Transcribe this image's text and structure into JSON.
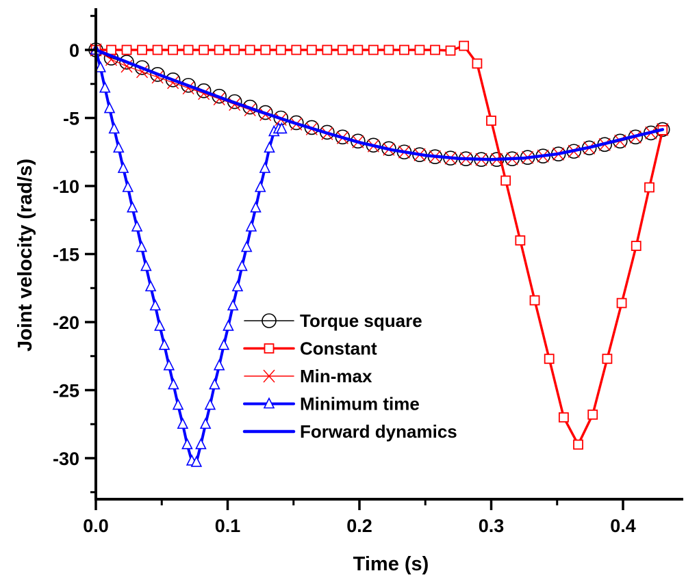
{
  "chart_data": {
    "type": "line",
    "title": "",
    "xlabel": "Time (s)",
    "ylabel": "Joint velocity (rad/s)",
    "xlim": [
      0,
      0.45
    ],
    "ylim": [
      -33,
      3
    ],
    "xticks": [
      0.0,
      0.1,
      0.2,
      0.3,
      0.4
    ],
    "xtick_labels": [
      "0.0",
      "0.1",
      "0.2",
      "0.3",
      "0.4"
    ],
    "yticks": [
      0,
      -5,
      -10,
      -15,
      -20,
      -25,
      -30
    ],
    "ytick_labels": [
      "0",
      "-5",
      "-10",
      "-15",
      "-20",
      "-25",
      "-30"
    ],
    "grid": false,
    "legend_position": "center",
    "series": [
      {
        "name": "Torque square",
        "color": "#000000",
        "marker": "circle",
        "x": [
          0.0,
          0.0117,
          0.0234,
          0.0351,
          0.0468,
          0.0585,
          0.0702,
          0.0819,
          0.0936,
          0.1053,
          0.117,
          0.1287,
          0.1404,
          0.1521,
          0.1638,
          0.1755,
          0.1872,
          0.1989,
          0.2106,
          0.2223,
          0.234,
          0.2457,
          0.2574,
          0.2691,
          0.2808,
          0.2925,
          0.3042,
          0.3159,
          0.3276,
          0.3393,
          0.351,
          0.3627,
          0.3744,
          0.3861,
          0.3978,
          0.4095,
          0.4212,
          0.43
        ],
        "values": [
          0.0,
          -0.6,
          -0.9,
          -1.3,
          -1.8,
          -2.2,
          -2.6,
          -3.0,
          -3.4,
          -3.8,
          -4.2,
          -4.6,
          -5.0,
          -5.35,
          -5.7,
          -6.05,
          -6.4,
          -6.7,
          -7.0,
          -7.25,
          -7.5,
          -7.7,
          -7.85,
          -7.95,
          -8.0,
          -8.05,
          -8.05,
          -8.0,
          -7.9,
          -7.8,
          -7.65,
          -7.45,
          -7.2,
          -6.95,
          -6.7,
          -6.4,
          -6.1,
          -5.85
        ]
      },
      {
        "name": "Constant",
        "color": "#ff0000",
        "marker": "square",
        "x": [
          0.0,
          0.0117,
          0.0234,
          0.0351,
          0.0468,
          0.0585,
          0.0702,
          0.0819,
          0.0936,
          0.1053,
          0.117,
          0.1287,
          0.1404,
          0.1521,
          0.1638,
          0.1755,
          0.1872,
          0.1989,
          0.2106,
          0.2223,
          0.234,
          0.2457,
          0.2574,
          0.2691,
          0.2793,
          0.2893,
          0.3,
          0.311,
          0.322,
          0.333,
          0.344,
          0.355,
          0.366,
          0.377,
          0.388,
          0.399,
          0.41,
          0.42,
          0.43
        ],
        "values": [
          0.0,
          0.0,
          0.0,
          0.0,
          0.0,
          0.0,
          0.0,
          0.0,
          0.0,
          0.0,
          0.0,
          0.0,
          0.0,
          0.0,
          0.0,
          0.0,
          0.0,
          0.0,
          0.0,
          0.0,
          0.0,
          0.0,
          0.0,
          -0.05,
          0.3,
          -1.0,
          -5.2,
          -9.6,
          -14.0,
          -18.4,
          -22.7,
          -27.0,
          -29.0,
          -26.8,
          -22.7,
          -18.6,
          -14.4,
          -10.1,
          -5.9
        ]
      },
      {
        "name": "Min-max",
        "color": "#ff0000",
        "marker": "x",
        "x": [
          0.0,
          0.0117,
          0.0234,
          0.0351,
          0.0468,
          0.0585,
          0.0702,
          0.0819,
          0.0936,
          0.1053,
          0.117,
          0.1287,
          0.1404,
          0.1521,
          0.1638,
          0.1755,
          0.1872,
          0.1989,
          0.2106,
          0.2223,
          0.234,
          0.2457,
          0.2574,
          0.2691,
          0.2808,
          0.2925,
          0.3042,
          0.3159,
          0.3276,
          0.3393,
          0.351,
          0.3627,
          0.3744,
          0.3861,
          0.3978,
          0.4095,
          0.4212,
          0.43
        ],
        "values": [
          0.0,
          -0.7,
          -1.2,
          -1.6,
          -2.0,
          -2.4,
          -2.8,
          -3.2,
          -3.6,
          -4.0,
          -4.4,
          -4.75,
          -5.1,
          -5.45,
          -5.8,
          -6.15,
          -6.45,
          -6.75,
          -7.05,
          -7.3,
          -7.5,
          -7.7,
          -7.85,
          -7.95,
          -8.0,
          -8.05,
          -8.05,
          -8.0,
          -7.9,
          -7.8,
          -7.65,
          -7.45,
          -7.2,
          -6.95,
          -6.7,
          -6.4,
          -6.1,
          -5.85
        ]
      },
      {
        "name": "Minimum time",
        "color": "#0000ff",
        "marker": "triangle",
        "x": [
          0.0,
          0.0035,
          0.0069,
          0.0104,
          0.0139,
          0.0173,
          0.0208,
          0.0243,
          0.0277,
          0.0312,
          0.0347,
          0.0381,
          0.0416,
          0.0451,
          0.0485,
          0.052,
          0.0555,
          0.0589,
          0.0624,
          0.0659,
          0.0693,
          0.0728,
          0.0763,
          0.0797,
          0.0832,
          0.0867,
          0.0901,
          0.0936,
          0.0971,
          0.1005,
          0.104,
          0.1075,
          0.1109,
          0.1144,
          0.1179,
          0.1213,
          0.1248,
          0.1283,
          0.1317,
          0.1352,
          0.1387,
          0.141
        ],
        "values": [
          0.0,
          -1.3,
          -2.8,
          -4.3,
          -5.8,
          -7.2,
          -8.7,
          -10.1,
          -11.6,
          -13.0,
          -14.5,
          -15.9,
          -17.4,
          -18.8,
          -20.3,
          -21.7,
          -23.2,
          -24.6,
          -26.1,
          -27.5,
          -29.0,
          -30.2,
          -30.3,
          -29.0,
          -27.5,
          -26.1,
          -24.6,
          -23.2,
          -21.7,
          -20.3,
          -18.8,
          -17.4,
          -15.9,
          -14.5,
          -13.0,
          -11.6,
          -10.1,
          -8.7,
          -7.2,
          -6.0,
          -5.8,
          -5.8
        ]
      },
      {
        "name": "Forward dynamics",
        "color": "#0000ff",
        "marker": "none",
        "x": [
          0.0,
          0.025,
          0.05,
          0.075,
          0.1,
          0.125,
          0.15,
          0.175,
          0.2,
          0.225,
          0.25,
          0.275,
          0.3,
          0.325,
          0.35,
          0.375,
          0.4,
          0.43
        ],
        "values": [
          0.0,
          -0.95,
          -1.9,
          -2.8,
          -3.7,
          -4.55,
          -5.35,
          -6.1,
          -6.8,
          -7.35,
          -7.75,
          -7.98,
          -8.05,
          -7.95,
          -7.65,
          -7.15,
          -6.55,
          -5.85
        ]
      }
    ]
  }
}
